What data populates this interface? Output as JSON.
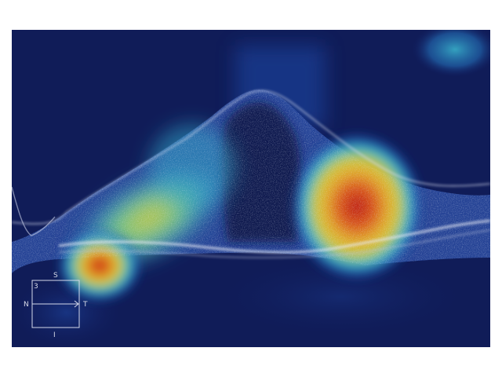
{
  "image": {
    "description_type": "oct-heatmap-overlay",
    "colors": {
      "background_white": "#ffffff",
      "heatmap_low": "#13206a",
      "heatmap_mid_blue": "#1f55b8",
      "heatmap_cyan": "#3bb8c8",
      "heatmap_yellow": "#d6c93a",
      "heatmap_orange": "#e07a1d",
      "heatmap_red": "#c4201a",
      "retina_texture": "#cfd4e6"
    }
  },
  "orientation_box": {
    "superior_label": "S",
    "inferior_label": "I",
    "nasal_label": "N",
    "temporal_label": "T",
    "slice_number": "3"
  }
}
